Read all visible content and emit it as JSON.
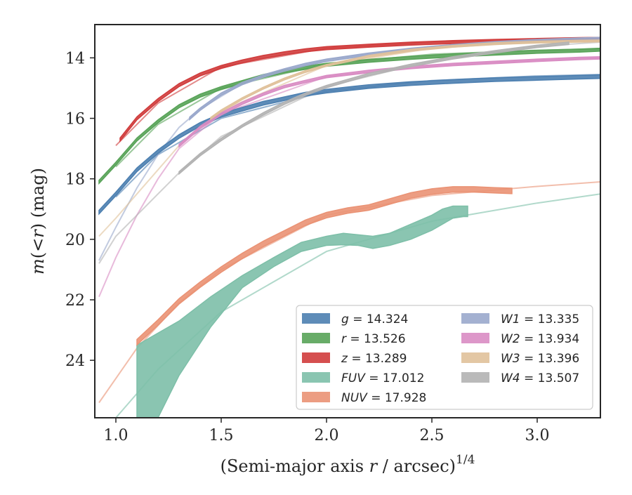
{
  "chart_data": {
    "type": "line",
    "xlabel": "(Semi-major axis r / arcsec)^(1/4)",
    "ylabel": "m(<r) (mag)",
    "xlim": [
      0.9,
      3.3
    ],
    "ylim": [
      25.9,
      12.9
    ],
    "y_inverted": true,
    "grid": false,
    "legend_position": "lower-right",
    "x_ticks": [
      "1.0",
      "1.5",
      "2.0",
      "2.5",
      "3.0"
    ],
    "y_ticks": [
      "14",
      "16",
      "18",
      "20",
      "22",
      "24"
    ],
    "series": [
      {
        "name": "g = 14.324",
        "band": "g",
        "mag": "14.324",
        "color": "#4c7fb0",
        "width": 0.12,
        "x": [
          0.92,
          1.0,
          1.1,
          1.2,
          1.3,
          1.4,
          1.5,
          1.6,
          1.7,
          1.8,
          1.9,
          2.0,
          2.2,
          2.4,
          2.6,
          2.8,
          3.0,
          3.2,
          3.3
        ],
        "y": [
          19.1,
          18.5,
          17.7,
          17.1,
          16.6,
          16.2,
          15.9,
          15.7,
          15.5,
          15.35,
          15.2,
          15.1,
          14.95,
          14.85,
          14.78,
          14.72,
          14.68,
          14.64,
          14.62
        ]
      },
      {
        "name": "r = 13.526",
        "band": "r",
        "mag": "13.526",
        "color": "#58a358",
        "width": 0.1,
        "x": [
          0.92,
          1.0,
          1.1,
          1.2,
          1.3,
          1.4,
          1.5,
          1.6,
          1.7,
          1.8,
          1.9,
          2.0,
          2.2,
          2.4,
          2.6,
          2.8,
          3.0,
          3.2,
          3.3
        ],
        "y": [
          18.1,
          17.5,
          16.7,
          16.1,
          15.6,
          15.25,
          15.0,
          14.8,
          14.6,
          14.45,
          14.33,
          14.23,
          14.1,
          14.0,
          13.92,
          13.86,
          13.8,
          13.76,
          13.73
        ]
      },
      {
        "name": "z = 13.289",
        "band": "z",
        "mag": "13.289",
        "color": "#d03c3c",
        "width": 0.1,
        "x": [
          1.02,
          1.1,
          1.2,
          1.3,
          1.4,
          1.5,
          1.6,
          1.7,
          1.8,
          1.9,
          2.0,
          2.2,
          2.4,
          2.6,
          2.8,
          3.0,
          3.2,
          3.3
        ],
        "y": [
          16.7,
          16.0,
          15.4,
          14.9,
          14.55,
          14.3,
          14.12,
          13.97,
          13.85,
          13.75,
          13.68,
          13.6,
          13.53,
          13.48,
          13.44,
          13.41,
          13.38,
          13.37
        ]
      },
      {
        "name": "FUV = 17.012",
        "band": "FUV",
        "mag": "17.012",
        "color": "#7dbfa8",
        "band_fill": true,
        "x": [
          1.1,
          1.2,
          1.3,
          1.45,
          1.6,
          1.75,
          1.88,
          2.0,
          2.08,
          2.15,
          2.22,
          2.3,
          2.4,
          2.5,
          2.55,
          2.6,
          2.65,
          2.67
        ],
        "y_upper": [
          23.5,
          23.1,
          22.7,
          21.9,
          21.2,
          20.6,
          20.1,
          19.9,
          19.8,
          19.85,
          19.9,
          19.8,
          19.5,
          19.2,
          19.0,
          18.9,
          18.9,
          18.9
        ],
        "y_lower": [
          25.9,
          25.9,
          24.5,
          22.9,
          21.6,
          20.9,
          20.4,
          20.2,
          20.18,
          20.2,
          20.3,
          20.2,
          20.0,
          19.7,
          19.5,
          19.3,
          19.25,
          19.25
        ]
      },
      {
        "name": "NUV = 17.928",
        "band": "NUV",
        "mag": "17.928",
        "color": "#ea9274",
        "width": 0.18,
        "x": [
          1.1,
          1.2,
          1.3,
          1.4,
          1.5,
          1.6,
          1.7,
          1.8,
          1.9,
          2.0,
          2.1,
          2.2,
          2.3,
          2.4,
          2.5,
          2.6,
          2.7,
          2.8,
          2.88
        ],
        "y": [
          23.4,
          22.75,
          22.05,
          21.5,
          21.0,
          20.55,
          20.15,
          19.8,
          19.45,
          19.2,
          19.05,
          18.95,
          18.75,
          18.55,
          18.42,
          18.35,
          18.35,
          18.38,
          18.4
        ]
      },
      {
        "name": "W1 = 13.335",
        "band": "W1",
        "mag": "13.335",
        "color": "#9aa8cc",
        "width": 0.08,
        "x": [
          1.35,
          1.4,
          1.5,
          1.6,
          1.7,
          1.8,
          1.9,
          2.0,
          2.2,
          2.4,
          2.6,
          2.8,
          3.0,
          3.2,
          3.3
        ],
        "y": [
          16.0,
          15.7,
          15.2,
          14.85,
          14.6,
          14.4,
          14.22,
          14.08,
          13.88,
          13.72,
          13.6,
          13.5,
          13.43,
          13.38,
          13.36
        ]
      },
      {
        "name": "W2 = 13.934",
        "band": "W2",
        "mag": "13.934",
        "color": "#d98cc3",
        "width": 0.08,
        "x": [
          1.3,
          1.4,
          1.5,
          1.6,
          1.7,
          1.8,
          1.9,
          2.0,
          2.2,
          2.4,
          2.6,
          2.8,
          3.0,
          3.2,
          3.3
        ],
        "y": [
          16.9,
          16.3,
          15.85,
          15.5,
          15.2,
          14.95,
          14.78,
          14.62,
          14.45,
          14.32,
          14.22,
          14.15,
          14.08,
          14.02,
          14.0
        ]
      },
      {
        "name": "W3 = 13.396",
        "band": "W3",
        "mag": "13.396",
        "color": "#e0c19a",
        "width": 0.06,
        "x": [
          1.45,
          1.5,
          1.6,
          1.7,
          1.8,
          1.9,
          2.0,
          2.2,
          2.4,
          2.6,
          2.8,
          3.0,
          3.2,
          3.3
        ],
        "y": [
          16.0,
          15.75,
          15.35,
          15.0,
          14.7,
          14.45,
          14.25,
          13.95,
          13.75,
          13.62,
          13.53,
          13.48,
          13.45,
          13.44
        ]
      },
      {
        "name": "W4 = 13.507",
        "band": "W4",
        "mag": "13.507",
        "color": "#b3b3b3",
        "width": 0.08,
        "x": [
          1.3,
          1.4,
          1.5,
          1.6,
          1.7,
          1.8,
          1.9,
          2.0,
          2.2,
          2.4,
          2.6,
          2.8,
          3.0,
          3.15
        ],
        "y": [
          17.8,
          17.2,
          16.7,
          16.25,
          15.85,
          15.5,
          15.2,
          14.95,
          14.55,
          14.25,
          14.0,
          13.8,
          13.62,
          13.52
        ]
      }
    ],
    "extrapolations": [
      {
        "band": "g",
        "color": "#4c7fb0",
        "x": [
          1.0,
          1.2,
          1.5,
          2.0,
          2.5,
          3.0,
          3.3
        ],
        "y": [
          18.6,
          17.2,
          16.0,
          15.1,
          14.75,
          14.6,
          14.55
        ]
      },
      {
        "band": "r",
        "color": "#58a358",
        "x": [
          1.0,
          1.2,
          1.5,
          2.0,
          2.5,
          3.0,
          3.3
        ],
        "y": [
          17.6,
          16.2,
          15.0,
          14.2,
          13.88,
          13.75,
          13.7
        ]
      },
      {
        "band": "z",
        "color": "#d03c3c",
        "x": [
          1.0,
          1.2,
          1.5,
          2.0,
          2.5,
          3.0,
          3.3
        ],
        "y": [
          16.9,
          15.5,
          14.3,
          13.68,
          13.48,
          13.4,
          13.35
        ]
      },
      {
        "band": "FUV",
        "color": "#7dbfa8",
        "x": [
          1.0,
          1.2,
          1.5,
          2.0,
          2.5,
          3.0,
          3.3
        ],
        "y": [
          25.9,
          24.3,
          22.4,
          20.4,
          19.4,
          18.8,
          18.5
        ]
      },
      {
        "band": "NUV",
        "color": "#ea9274",
        "x": [
          0.92,
          1.1,
          1.3,
          1.5,
          2.0,
          2.5,
          3.0,
          3.3
        ],
        "y": [
          25.4,
          23.6,
          22.1,
          21.0,
          19.2,
          18.55,
          18.25,
          18.1
        ]
      },
      {
        "band": "W1",
        "color": "#9aa8cc",
        "x": [
          0.92,
          1.0,
          1.1,
          1.2,
          1.3,
          1.4,
          1.6,
          2.0,
          2.5,
          3.0,
          3.3
        ],
        "y": [
          20.7,
          19.6,
          18.3,
          17.2,
          16.3,
          15.7,
          14.85,
          14.05,
          13.62,
          13.43,
          13.36
        ]
      },
      {
        "band": "W2",
        "color": "#d98cc3",
        "x": [
          0.92,
          1.0,
          1.1,
          1.2,
          1.3,
          1.5,
          2.0,
          2.5,
          3.0,
          3.3
        ],
        "y": [
          21.9,
          20.6,
          19.2,
          18.0,
          17.0,
          15.85,
          14.62,
          14.27,
          14.08,
          14.0
        ]
      },
      {
        "band": "W3",
        "color": "#e0c19a",
        "x": [
          0.92,
          1.0,
          1.1,
          1.2,
          1.3,
          1.5,
          2.0,
          2.5,
          3.0,
          3.3
        ],
        "y": [
          19.9,
          19.3,
          18.5,
          17.7,
          16.9,
          15.75,
          14.25,
          13.68,
          13.48,
          13.44
        ]
      },
      {
        "band": "W4",
        "color": "#b3b3b3",
        "x": [
          0.92,
          1.0,
          1.1,
          1.2,
          1.3,
          1.5,
          2.0,
          2.5,
          3.0,
          3.3
        ],
        "y": [
          20.8,
          19.9,
          19.2,
          18.5,
          17.8,
          16.6,
          14.95,
          14.1,
          13.62,
          13.48
        ]
      }
    ]
  }
}
